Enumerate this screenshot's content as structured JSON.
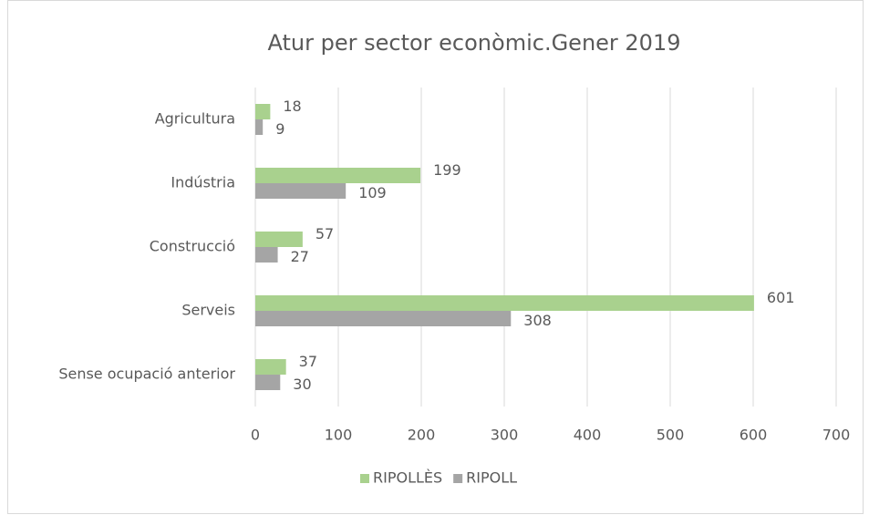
{
  "chart_data": {
    "type": "bar",
    "orientation": "horizontal",
    "title": "Atur per sector econòmic.Gener 2019",
    "categories": [
      "Agricultura",
      "Indústria",
      "Construcció",
      "Serveis",
      "Sense ocupació anterior"
    ],
    "series": [
      {
        "name": "RIPOLLÈS",
        "color": "#a9d18e",
        "values": [
          18,
          199,
          57,
          601,
          37
        ]
      },
      {
        "name": "RIPOLL",
        "color": "#a5a5a5",
        "values": [
          9,
          109,
          27,
          308,
          30
        ]
      }
    ],
    "xlim": [
      0,
      700
    ],
    "xticks": [
      0,
      100,
      200,
      300,
      400,
      500,
      600,
      700
    ],
    "grid": true,
    "legend": "bottom"
  }
}
